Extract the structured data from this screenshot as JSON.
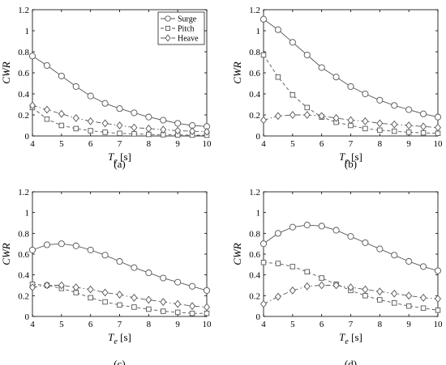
{
  "chart_data": [
    {
      "type": "line",
      "panel_label": "(a)",
      "xlabel": "T",
      "xlabel_sub": "e",
      "xlabel_unit": " [s]",
      "ylabel": "CWR",
      "xlim": [
        4,
        10
      ],
      "ylim": [
        0,
        1.2
      ],
      "xticks": [
        "4",
        "5",
        "6",
        "7",
        "8",
        "9",
        "10"
      ],
      "yticks": [
        "0",
        "0.2",
        "0.4",
        "0.6",
        "0.8",
        "1",
        "1.2"
      ],
      "legend": "top-right",
      "x": [
        4,
        4.5,
        5,
        5.5,
        6,
        6.5,
        7,
        7.5,
        8,
        8.5,
        9,
        9.5,
        10
      ],
      "series": [
        {
          "name": "Surge",
          "marker": "circle",
          "dash": "solid",
          "values": [
            0.76,
            0.67,
            0.57,
            0.47,
            0.38,
            0.31,
            0.26,
            0.22,
            0.18,
            0.15,
            0.12,
            0.1,
            0.09
          ]
        },
        {
          "name": "Pitch",
          "marker": "square",
          "dash": "dashed",
          "values": [
            0.27,
            0.16,
            0.1,
            0.07,
            0.05,
            0.035,
            0.025,
            0.02,
            0.015,
            0.012,
            0.01,
            0.008,
            0.007
          ]
        },
        {
          "name": "Heave",
          "marker": "diamond",
          "dash": "dashdot",
          "values": [
            0.29,
            0.25,
            0.21,
            0.17,
            0.14,
            0.12,
            0.1,
            0.08,
            0.07,
            0.06,
            0.05,
            0.045,
            0.04
          ]
        }
      ]
    },
    {
      "type": "line",
      "panel_label": "(b)",
      "xlabel": "T",
      "xlabel_sub": "e",
      "xlabel_unit": " [s]",
      "ylabel": "CWR",
      "xlim": [
        4,
        10
      ],
      "ylim": [
        0,
        1.2
      ],
      "xticks": [
        "4",
        "5",
        "6",
        "7",
        "8",
        "9",
        "10"
      ],
      "yticks": [
        "0",
        "0.2",
        "0.4",
        "0.6",
        "0.8",
        "1",
        "1.2"
      ],
      "x": [
        4,
        4.5,
        5,
        5.5,
        6,
        6.5,
        7,
        7.5,
        8,
        8.5,
        9,
        9.5,
        10
      ],
      "series": [
        {
          "name": "Surge",
          "marker": "circle",
          "dash": "solid",
          "values": [
            1.11,
            1.01,
            0.89,
            0.77,
            0.65,
            0.56,
            0.47,
            0.4,
            0.34,
            0.29,
            0.25,
            0.21,
            0.18
          ]
        },
        {
          "name": "Pitch",
          "marker": "square",
          "dash": "dashed",
          "values": [
            0.77,
            0.56,
            0.39,
            0.27,
            0.18,
            0.13,
            0.1,
            0.07,
            0.055,
            0.045,
            0.035,
            0.03,
            0.025
          ]
        },
        {
          "name": "Heave",
          "marker": "diamond",
          "dash": "dashdot",
          "values": [
            0.15,
            0.19,
            0.2,
            0.2,
            0.19,
            0.17,
            0.15,
            0.14,
            0.12,
            0.11,
            0.1,
            0.09,
            0.08
          ]
        }
      ]
    },
    {
      "type": "line",
      "panel_label": "(c)",
      "xlabel": "T",
      "xlabel_sub": "e",
      "xlabel_unit": " [s]",
      "ylabel": "CWR",
      "xlim": [
        4,
        10
      ],
      "ylim": [
        0,
        1.2
      ],
      "xticks": [
        "4",
        "5",
        "6",
        "7",
        "8",
        "9",
        "10"
      ],
      "yticks": [
        "0",
        "0.2",
        "0.4",
        "0.6",
        "0.8",
        "1",
        "1.2"
      ],
      "x": [
        4,
        4.5,
        5,
        5.5,
        6,
        6.5,
        7,
        7.5,
        8,
        8.5,
        9,
        9.5,
        10
      ],
      "series": [
        {
          "name": "Surge",
          "marker": "circle",
          "dash": "solid",
          "values": [
            0.64,
            0.69,
            0.7,
            0.68,
            0.64,
            0.59,
            0.53,
            0.47,
            0.42,
            0.37,
            0.33,
            0.29,
            0.25
          ]
        },
        {
          "name": "Pitch",
          "marker": "square",
          "dash": "dashed",
          "values": [
            0.31,
            0.3,
            0.27,
            0.23,
            0.18,
            0.14,
            0.11,
            0.09,
            0.07,
            0.05,
            0.04,
            0.03,
            0.03
          ]
        },
        {
          "name": "Heave",
          "marker": "diamond",
          "dash": "dashdot",
          "values": [
            0.28,
            0.3,
            0.3,
            0.28,
            0.26,
            0.23,
            0.21,
            0.18,
            0.16,
            0.14,
            0.12,
            0.1,
            0.09
          ]
        }
      ]
    },
    {
      "type": "line",
      "panel_label": "(d)",
      "xlabel": "T",
      "xlabel_sub": "e",
      "xlabel_unit": " [s]",
      "ylabel": "CWR",
      "xlim": [
        4,
        10
      ],
      "ylim": [
        0,
        1.2
      ],
      "xticks": [
        "4",
        "5",
        "6",
        "7",
        "8",
        "9",
        "10"
      ],
      "yticks": [
        "0",
        "0.2",
        "0.4",
        "0.6",
        "0.8",
        "1",
        "1.2"
      ],
      "x": [
        4,
        4.5,
        5,
        5.5,
        6,
        6.5,
        7,
        7.5,
        8,
        8.5,
        9,
        9.5,
        10
      ],
      "series": [
        {
          "name": "Surge",
          "marker": "circle",
          "dash": "solid",
          "values": [
            0.7,
            0.8,
            0.86,
            0.88,
            0.87,
            0.83,
            0.77,
            0.71,
            0.65,
            0.59,
            0.53,
            0.48,
            0.44
          ]
        },
        {
          "name": "Pitch",
          "marker": "square",
          "dash": "dashed",
          "values": [
            0.52,
            0.51,
            0.48,
            0.43,
            0.37,
            0.31,
            0.25,
            0.2,
            0.16,
            0.13,
            0.1,
            0.08,
            0.06
          ]
        },
        {
          "name": "Heave",
          "marker": "diamond",
          "dash": "dashdot",
          "values": [
            0.12,
            0.19,
            0.25,
            0.29,
            0.3,
            0.3,
            0.28,
            0.26,
            0.24,
            0.22,
            0.2,
            0.18,
            0.17
          ]
        }
      ]
    }
  ]
}
